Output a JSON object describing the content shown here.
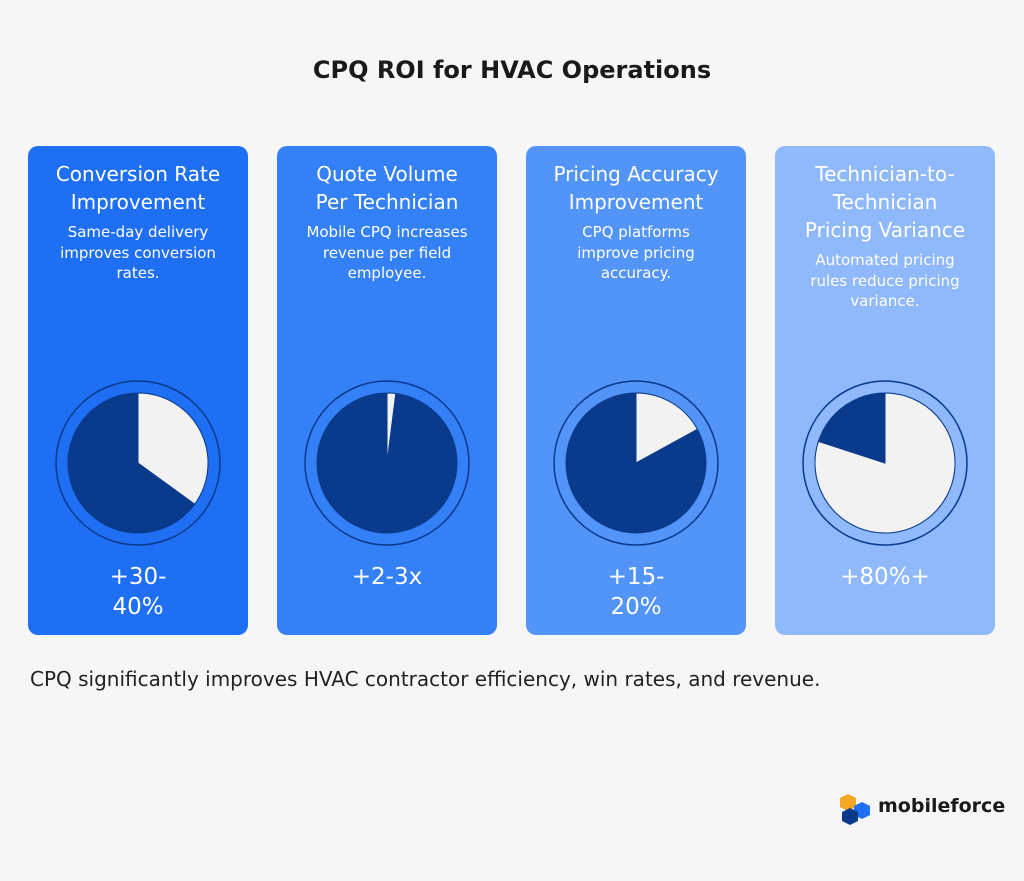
{
  "header": {
    "title": "CPQ ROI for HVAC Operations"
  },
  "cards": [
    {
      "title": "Conversion Rate Improvement",
      "description": "Same-day delivery improves conversion rates.",
      "value": "+30-40%",
      "pie_share": 35,
      "color": "#1f6ff5"
    },
    {
      "title": "Quote Volume Per Technician",
      "description": "Mobile CPQ increases revenue per field employee.",
      "value": "+2-3x",
      "pie_share": 2,
      "color": "#3480f7"
    },
    {
      "title": "Pricing Accuracy Improvement",
      "description": "CPQ platforms improve pricing accuracy.",
      "value": "+15-20%",
      "pie_share": 17,
      "color": "#5394f9"
    },
    {
      "title": "Technician-to-Technician Pricing Variance",
      "description": "Automated pricing rules reduce pricing variance.",
      "value": "+80%+",
      "pie_share": 80,
      "color": "#8fb9fb"
    }
  ],
  "footer": {
    "summary": "CPQ significantly improves HVAC contractor efficiency, win rates, and revenue.",
    "brand": "mobileforce"
  }
}
